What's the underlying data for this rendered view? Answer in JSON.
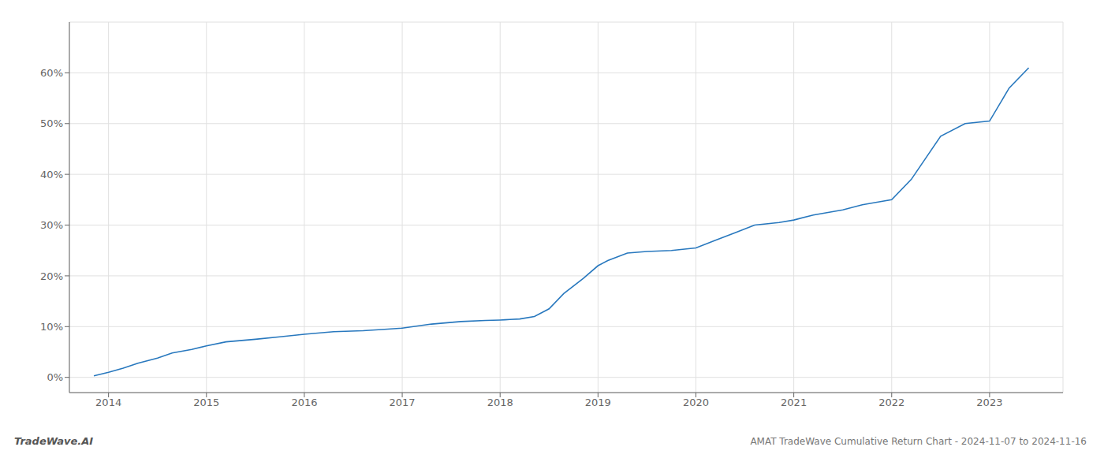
{
  "chart_data": {
    "type": "line",
    "title": "AMAT TradeWave Cumulative Return Chart - 2024-11-07 to 2024-11-16",
    "annotations": [
      "TradeWave.AI"
    ],
    "x": [
      2013.85,
      2014.0,
      2014.15,
      2014.3,
      2014.5,
      2014.65,
      2014.85,
      2015.0,
      2015.2,
      2015.5,
      2015.75,
      2016.0,
      2016.3,
      2016.6,
      2016.85,
      2017.0,
      2017.3,
      2017.6,
      2017.85,
      2018.0,
      2018.05,
      2018.1,
      2018.2,
      2018.35,
      2018.5,
      2018.65,
      2018.85,
      2019.0,
      2019.1,
      2019.3,
      2019.5,
      2019.75,
      2020.0,
      2020.2,
      2020.4,
      2020.6,
      2020.85,
      2021.0,
      2021.2,
      2021.5,
      2021.7,
      2021.85,
      2022.0,
      2022.2,
      2022.5,
      2022.75,
      2023.0,
      2023.2,
      2023.4
    ],
    "values": [
      0.3,
      1.0,
      1.8,
      2.8,
      3.8,
      4.8,
      5.5,
      6.2,
      7.0,
      7.5,
      8.0,
      8.5,
      9.0,
      9.2,
      9.5,
      9.7,
      10.5,
      11.0,
      11.2,
      11.3,
      11.35,
      11.4,
      11.5,
      12.0,
      13.5,
      16.5,
      19.5,
      22.0,
      23.0,
      24.5,
      24.8,
      25.0,
      25.5,
      27.0,
      28.5,
      30.0,
      30.5,
      31.0,
      32.0,
      33.0,
      34.0,
      34.5,
      35.0,
      39.0,
      47.5,
      50.0,
      50.5,
      57.0,
      61.0
    ],
    "color": "#2878be",
    "xlim": [
      2013.6,
      2023.75
    ],
    "xticks": [
      2014,
      2015,
      2016,
      2017,
      2018,
      2019,
      2020,
      2021,
      2022,
      2023
    ],
    "ylim": [
      -3,
      70
    ],
    "yticks": [
      {
        "value": 0,
        "label": "0%"
      },
      {
        "value": 10,
        "label": "10%"
      },
      {
        "value": 20,
        "label": "20%"
      },
      {
        "value": 30,
        "label": "30%"
      },
      {
        "value": 40,
        "label": "40%"
      },
      {
        "value": 50,
        "label": "50%"
      },
      {
        "value": 60,
        "label": "60%"
      }
    ],
    "grid": true
  }
}
